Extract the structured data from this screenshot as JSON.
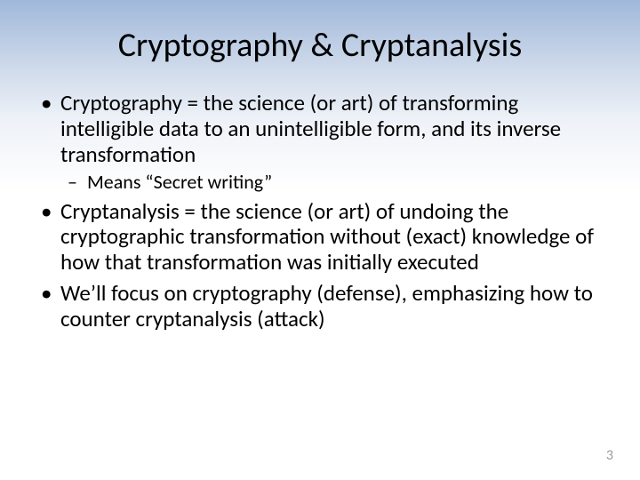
{
  "slide": {
    "title": "Cryptography & Cryptanalysis",
    "bullets": [
      {
        "text": "Cryptography = the science (or art) of transforming intelligible data to an unintelligible form, and its inverse transformation",
        "sub": [
          "Means “Secret writing”"
        ]
      },
      {
        "text": "Cryptanalysis = the science (or art) of undoing the cryptographic transformation without (exact) knowledge of how that transformation was initially executed"
      },
      {
        "text": "We’ll focus on cryptography (defense), emphasizing how to counter cryptanalysis (attack)"
      }
    ],
    "page_number": "3"
  },
  "style": {
    "background_gradient_top": "#9fb8db",
    "background_gradient_mid": "#c8d5e8",
    "background_gradient_bottom": "#ffffff",
    "title_fontsize": 38,
    "body_fontsize": 25,
    "sub_fontsize": 22,
    "text_color": "#000000",
    "page_number_color": "#9a9a9a",
    "font_family": "Calibri"
  }
}
